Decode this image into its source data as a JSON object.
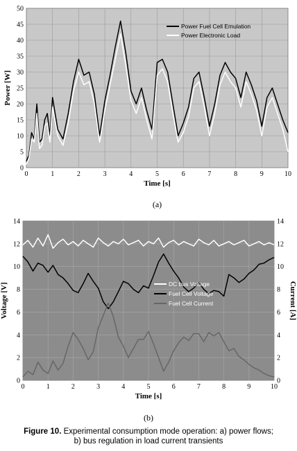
{
  "chart_data": [
    {
      "type": "line",
      "panel_label": "(a)",
      "xlabel": "Time [s]",
      "ylabel": "Power [W]",
      "xlim": [
        0,
        10
      ],
      "ylim": [
        0,
        50
      ],
      "xticks": [
        "0",
        "1",
        "2",
        "3",
        "4",
        "5",
        "6",
        "7",
        "8",
        "9",
        "10"
      ],
      "yticks": [
        "0",
        "5",
        "10",
        "15",
        "20",
        "25",
        "30",
        "35",
        "40",
        "45",
        "50"
      ],
      "grid": true,
      "legend_position": "top-right",
      "background": "#c8c8c8",
      "series": [
        {
          "name": "Power Fuel Cell Emulation",
          "color": "#000000",
          "x": [
            0,
            0.1,
            0.2,
            0.3,
            0.4,
            0.5,
            0.6,
            0.7,
            0.8,
            0.9,
            1.0,
            1.2,
            1.4,
            1.6,
            1.8,
            2.0,
            2.2,
            2.4,
            2.6,
            2.8,
            3.0,
            3.2,
            3.4,
            3.6,
            3.8,
            4.0,
            4.2,
            4.4,
            4.6,
            4.8,
            5.0,
            5.2,
            5.4,
            5.6,
            5.8,
            6.0,
            6.2,
            6.4,
            6.6,
            6.8,
            7.0,
            7.2,
            7.4,
            7.6,
            7.8,
            8.0,
            8.2,
            8.4,
            8.6,
            8.8,
            9.0,
            9.2,
            9.4,
            9.6,
            9.8,
            10.0
          ],
          "values": [
            2,
            4,
            11,
            9,
            20,
            8,
            9,
            15,
            17,
            10,
            22,
            12,
            9,
            17,
            27,
            34,
            29,
            30,
            23,
            10,
            21,
            29,
            38,
            46,
            36,
            24,
            20,
            25,
            18,
            12,
            33,
            34,
            30,
            20,
            10,
            14,
            19,
            28,
            30,
            22,
            13,
            20,
            29,
            33,
            30,
            28,
            22,
            30,
            26,
            21,
            13,
            22,
            25,
            20,
            15,
            11
          ]
        },
        {
          "name": "Power Electronic Load",
          "color": "#ffffff",
          "x": [
            0,
            0.1,
            0.2,
            0.3,
            0.4,
            0.5,
            0.6,
            0.7,
            0.8,
            0.9,
            1.0,
            1.2,
            1.4,
            1.6,
            1.8,
            2.0,
            2.2,
            2.4,
            2.6,
            2.8,
            3.0,
            3.2,
            3.4,
            3.6,
            3.8,
            4.0,
            4.2,
            4.4,
            4.6,
            4.8,
            5.0,
            5.2,
            5.4,
            5.6,
            5.8,
            6.0,
            6.2,
            6.4,
            6.6,
            6.8,
            7.0,
            7.2,
            7.4,
            7.6,
            7.8,
            8.0,
            8.2,
            8.4,
            8.6,
            8.8,
            9.0,
            9.2,
            9.4,
            9.6,
            9.8,
            10.0
          ],
          "values": [
            1,
            3,
            9,
            8,
            17,
            6,
            7,
            13,
            14,
            8,
            19,
            10,
            7,
            14,
            24,
            30,
            26,
            27,
            20,
            8,
            18,
            26,
            34,
            42,
            32,
            21,
            17,
            22,
            15,
            9,
            29,
            31,
            27,
            17,
            8,
            11,
            16,
            25,
            27,
            19,
            10,
            17,
            26,
            30,
            27,
            25,
            19,
            27,
            23,
            18,
            10,
            19,
            22,
            17,
            12,
            5
          ]
        }
      ]
    },
    {
      "type": "line",
      "panel_label": "(b)",
      "xlabel": "Time [s]",
      "ylabel": "Voltage [V]",
      "ylabel_right": "Current [A]",
      "xlim": [
        0,
        10
      ],
      "ylim": [
        0,
        14
      ],
      "ylim_right": [
        0,
        14
      ],
      "xticks": [
        "0",
        "1",
        "2",
        "3",
        "4",
        "5",
        "6",
        "7",
        "8",
        "9",
        "10"
      ],
      "yticks": [
        "0",
        "2",
        "4",
        "6",
        "8",
        "10",
        "12",
        "14"
      ],
      "grid": true,
      "legend_position": "center-right",
      "background": "#8c8c8c",
      "series": [
        {
          "name": "DC bus Voltage",
          "color": "#ffffff",
          "x": [
            0,
            0.2,
            0.4,
            0.6,
            0.8,
            1.0,
            1.2,
            1.4,
            1.6,
            1.8,
            2.0,
            2.2,
            2.4,
            2.6,
            2.8,
            3.0,
            3.2,
            3.4,
            3.6,
            3.8,
            4.0,
            4.2,
            4.4,
            4.6,
            4.8,
            5.0,
            5.2,
            5.4,
            5.6,
            5.8,
            6.0,
            6.2,
            6.4,
            6.6,
            6.8,
            7.0,
            7.2,
            7.4,
            7.6,
            7.8,
            8.0,
            8.2,
            8.4,
            8.6,
            8.8,
            9.0,
            9.2,
            9.4,
            9.6,
            9.8,
            10.0
          ],
          "values": [
            11.9,
            12.3,
            11.7,
            12.5,
            11.8,
            12.8,
            11.6,
            12.1,
            12.4,
            11.9,
            12.2,
            11.8,
            12.3,
            12.0,
            11.7,
            12.5,
            12.1,
            11.8,
            12.2,
            12.0,
            12.4,
            11.9,
            12.1,
            12.3,
            11.8,
            12.2,
            12.0,
            12.5,
            11.7,
            12.1,
            12.3,
            11.9,
            12.2,
            12.0,
            11.8,
            12.4,
            12.1,
            11.9,
            12.3,
            11.8,
            12.0,
            12.2,
            11.9,
            12.1,
            12.3,
            11.8,
            12.0,
            12.2,
            11.9,
            12.1,
            11.9
          ]
        },
        {
          "name": "Fuel Cell Voltage",
          "color": "#000000",
          "x": [
            0,
            0.2,
            0.4,
            0.6,
            0.8,
            1.0,
            1.2,
            1.4,
            1.6,
            1.8,
            2.0,
            2.2,
            2.4,
            2.6,
            2.8,
            3.0,
            3.2,
            3.4,
            3.6,
            3.8,
            4.0,
            4.2,
            4.4,
            4.6,
            4.8,
            5.0,
            5.2,
            5.4,
            5.6,
            5.8,
            6.0,
            6.2,
            6.4,
            6.6,
            6.8,
            7.0,
            7.2,
            7.4,
            7.6,
            7.8,
            8.0,
            8.2,
            8.4,
            8.6,
            8.8,
            9.0,
            9.2,
            9.4,
            9.6,
            9.8,
            10.0
          ],
          "values": [
            10.9,
            10.4,
            9.6,
            10.3,
            10.1,
            9.5,
            10.1,
            9.3,
            9.0,
            8.5,
            7.9,
            7.7,
            8.5,
            9.4,
            8.7,
            8.1,
            6.9,
            6.3,
            6.9,
            7.8,
            8.7,
            8.5,
            8.0,
            7.7,
            8.3,
            8.1,
            9.2,
            10.4,
            11.1,
            10.3,
            9.6,
            9.0,
            8.2,
            7.8,
            8.1,
            8.6,
            8.0,
            7.6,
            7.9,
            7.8,
            7.4,
            9.3,
            9.0,
            8.6,
            8.9,
            9.4,
            9.7,
            10.2,
            10.3,
            10.6,
            10.8
          ]
        },
        {
          "name": "Fuel Cell Current",
          "color": "#666666",
          "x": [
            0,
            0.2,
            0.4,
            0.6,
            0.8,
            1.0,
            1.2,
            1.4,
            1.6,
            1.8,
            2.0,
            2.2,
            2.4,
            2.6,
            2.8,
            3.0,
            3.2,
            3.4,
            3.6,
            3.8,
            4.0,
            4.2,
            4.4,
            4.6,
            4.8,
            5.0,
            5.2,
            5.4,
            5.6,
            5.8,
            6.0,
            6.2,
            6.4,
            6.6,
            6.8,
            7.0,
            7.2,
            7.4,
            7.6,
            7.8,
            8.0,
            8.2,
            8.4,
            8.6,
            8.8,
            9.0,
            9.2,
            9.4,
            9.6,
            9.8,
            10.0
          ],
          "values": [
            0.3,
            0.8,
            0.5,
            1.6,
            0.9,
            0.6,
            1.7,
            0.9,
            1.5,
            3.0,
            4.2,
            3.6,
            2.8,
            1.8,
            2.5,
            4.6,
            5.7,
            6.8,
            5.6,
            3.8,
            3.0,
            2.0,
            2.8,
            3.6,
            3.6,
            4.3,
            3.2,
            2.0,
            0.8,
            1.6,
            2.6,
            3.3,
            3.8,
            3.5,
            4.1,
            4.1,
            3.4,
            4.2,
            3.9,
            4.2,
            3.4,
            2.6,
            2.8,
            2.1,
            1.8,
            1.4,
            1.1,
            0.9,
            0.6,
            0.4,
            0.3
          ]
        }
      ]
    }
  ],
  "caption": {
    "label": "Figure 10.",
    "line1": " Experimental consumption mode operation: a) power flows;",
    "line2": "b) bus regulation in load current transients"
  }
}
